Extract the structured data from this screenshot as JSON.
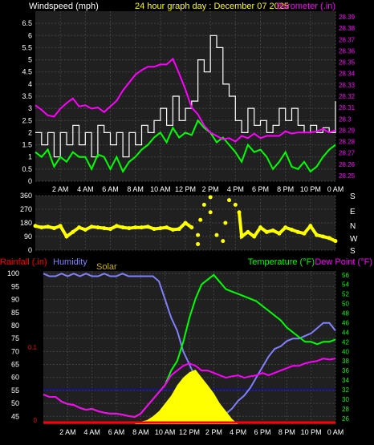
{
  "colors": {
    "background": "#000000",
    "plot_bg": "#202020",
    "grid": "#404040",
    "axis_text": "#ffffff",
    "wind": "#ffffff",
    "gust": "#00ff00",
    "barometer": "#ff00ff",
    "direction": "#ffff00",
    "rainfall": "#ff0000",
    "humidity": "#8080ff",
    "solar": "#ffff00",
    "temperature": "#00ff00",
    "dewpoint": "#ff00ff",
    "solar_label": "#c8b000"
  },
  "header": {
    "left_title": "Windspeed (mph)",
    "center_title": "24 hour graph day : December 07 2025",
    "right_title": "Barometer (.in)"
  },
  "bottom_header": {
    "rainfall": "Rainfall (.in)",
    "humidity": "Humidity",
    "solar": "Solar",
    "temperature": "Temperature (°F)",
    "dewpoint": "Dew Point (°F)"
  },
  "x_ticks": [
    "2 AM",
    "4 AM",
    "6 AM",
    "8 AM",
    "10 AM",
    "12 PM",
    "2 PM",
    "4 PM",
    "6 PM",
    "8 PM",
    "10 PM",
    "0 AM"
  ],
  "compass": [
    "S",
    "E",
    "N",
    "W",
    "S"
  ],
  "chart_data": [
    {
      "type": "line",
      "name": "wind",
      "x_range": [
        0,
        24
      ],
      "ylim": [
        0,
        7
      ],
      "yticks_left": [
        "0",
        "0.5",
        "1",
        "1.5",
        "2",
        "2.5",
        "3",
        "3.5",
        "4",
        "4.5",
        "5",
        "5.5",
        "6",
        "6.5"
      ],
      "ylim_right": [
        28.245,
        28.395
      ],
      "yticks_right": [
        "28.25",
        "28.26",
        "28.27",
        "28.28",
        "28.29",
        "28.3",
        "28.31",
        "28.32",
        "28.33",
        "28.34",
        "28.35",
        "28.36",
        "28.37",
        "28.38",
        "28.39"
      ],
      "series": [
        {
          "name": "wind",
          "axis": "left",
          "x": [
            0,
            0.5,
            1,
            1.5,
            2,
            2.5,
            3,
            3.5,
            4,
            4.5,
            5,
            5.5,
            6,
            6.5,
            7,
            7.5,
            8,
            8.5,
            9,
            9.5,
            10,
            10.5,
            11,
            11.5,
            12,
            12.5,
            13,
            13.5,
            14,
            14.5,
            15,
            15.5,
            16,
            16.5,
            17,
            17.5,
            18,
            18.5,
            19,
            19.5,
            20,
            20.5,
            21,
            21.5,
            22,
            22.5,
            23,
            23.5,
            24
          ],
          "values": [
            2,
            1.5,
            2,
            1,
            2,
            1.5,
            2.3,
            1.5,
            2,
            1,
            2.3,
            2,
            1.5,
            2,
            1,
            2,
            1.5,
            2.3,
            2,
            2.5,
            3,
            2.3,
            3.5,
            2.5,
            3,
            3.3,
            5,
            4.5,
            6,
            5.5,
            4,
            3.5,
            2.5,
            2,
            3,
            2.3,
            2.5,
            2,
            2.3,
            3,
            2.5,
            3,
            2.3,
            2,
            2.3,
            2,
            2.2,
            2,
            3.3
          ]
        },
        {
          "name": "gust",
          "axis": "left",
          "x": [
            0,
            0.5,
            1,
            1.5,
            2,
            2.5,
            3,
            3.5,
            4,
            4.5,
            5,
            5.5,
            6,
            6.5,
            7,
            7.5,
            8,
            8.5,
            9,
            9.5,
            10,
            10.5,
            11,
            11.5,
            12,
            12.5,
            13,
            13.5,
            14,
            14.5,
            15,
            15.5,
            16,
            16.5,
            17,
            17.5,
            18,
            18.5,
            19,
            19.5,
            20,
            20.5,
            21,
            21.5,
            22,
            22.5,
            23,
            23.5,
            24
          ],
          "values": [
            1.2,
            1,
            1.3,
            0.6,
            1,
            0.8,
            1.2,
            1,
            1,
            0.5,
            1.1,
            1,
            0.5,
            1,
            0.4,
            0.8,
            1,
            1.3,
            1.5,
            1.8,
            2,
            1.6,
            2.2,
            1.8,
            2,
            1.9,
            2.5,
            2.2,
            2,
            1.6,
            1.8,
            1.5,
            1.2,
            0.8,
            1.5,
            1.2,
            1.3,
            1,
            0.5,
            0.8,
            1.2,
            0.6,
            0.5,
            0.8,
            0.4,
            0.6,
            1,
            1.3,
            1.5
          ]
        },
        {
          "name": "barometer",
          "axis": "right",
          "x": [
            0,
            0.5,
            1,
            1.5,
            2,
            2.5,
            3,
            3.5,
            4,
            4.5,
            5,
            5.5,
            6,
            6.5,
            7,
            7.5,
            8,
            8.5,
            9,
            9.5,
            10,
            10.5,
            11,
            11.5,
            12,
            12.5,
            13,
            13.5,
            14,
            14.5,
            15,
            15.5,
            16,
            16.5,
            17,
            17.5,
            18,
            18.5,
            19,
            19.5,
            20,
            20.5,
            21,
            21.5,
            22,
            22.5,
            23,
            23.5,
            24
          ],
          "values": [
            28.312,
            28.308,
            28.303,
            28.302,
            28.309,
            28.314,
            28.318,
            28.311,
            28.312,
            28.309,
            28.31,
            28.306,
            28.311,
            28.316,
            28.325,
            28.332,
            28.339,
            28.343,
            28.346,
            28.346,
            28.348,
            28.348,
            28.353,
            28.34,
            28.326,
            28.31,
            28.304,
            28.294,
            28.288,
            28.285,
            28.282,
            28.283,
            28.28,
            28.285,
            28.283,
            28.287,
            28.283,
            28.285,
            28.285,
            28.285,
            28.289,
            28.287,
            28.288,
            28.288,
            28.288,
            28.289,
            28.291,
            28.288,
            28.29
          ]
        }
      ]
    },
    {
      "type": "scatter",
      "name": "wind direction",
      "x_range": [
        0,
        24
      ],
      "ylim": [
        0,
        360
      ],
      "yticks": [
        "0",
        "90",
        "180",
        "270",
        "360"
      ],
      "series": [
        {
          "name": "direction",
          "x": [
            0,
            0.5,
            1,
            1.5,
            2,
            2.5,
            3,
            3.5,
            4,
            4.5,
            5,
            5.5,
            6,
            6.5,
            7,
            7.5,
            8,
            8.5,
            9,
            9.5,
            10,
            10.5,
            11,
            11.5,
            12,
            12.5,
            13,
            13,
            13.2,
            13.5,
            14,
            14,
            14.5,
            15,
            15.2,
            15.5,
            16,
            16.3,
            16.5,
            17,
            17.5,
            18,
            18.5,
            19,
            19.5,
            20,
            20.5,
            21,
            21.5,
            22,
            22.5,
            23,
            23.5,
            24
          ],
          "values": [
            160,
            150,
            155,
            145,
            160,
            90,
            120,
            150,
            135,
            155,
            150,
            145,
            140,
            160,
            150,
            145,
            150,
            150,
            155,
            140,
            145,
            150,
            135,
            140,
            180,
            150,
            100,
            40,
            200,
            300,
            350,
            250,
            100,
            60,
            180,
            330,
            300,
            250,
            90,
            120,
            90,
            150,
            120,
            130,
            110,
            150,
            135,
            120,
            110,
            160,
            100,
            90,
            80,
            60
          ]
        }
      ]
    },
    {
      "type": "line",
      "name": "temperature humidity solar rainfall",
      "x_range": [
        0,
        24
      ],
      "ylim": [
        42,
        101
      ],
      "yticks_left": [
        "45",
        "50",
        "55",
        "60",
        "65",
        "70",
        "75",
        "80",
        "85",
        "90",
        "95",
        "100"
      ],
      "ylim_right": [
        24.8,
        56.8
      ],
      "yticks_right": [
        "26",
        "28",
        "30",
        "32",
        "34",
        "36",
        "38",
        "40",
        "42",
        "44",
        "46",
        "48",
        "50",
        "52",
        "54",
        "56"
      ],
      "rain_ticks": [
        "0",
        "0.1"
      ],
      "series": [
        {
          "name": "humidity",
          "axis": "left",
          "x": [
            0,
            0.5,
            1,
            1.5,
            2,
            2.5,
            3,
            3.5,
            4,
            4.5,
            5,
            5.5,
            6,
            6.5,
            7,
            7.5,
            8,
            8.5,
            9,
            9.5,
            10,
            10.5,
            11,
            11.5,
            12,
            12.5,
            13,
            13.5,
            14,
            14.5,
            15,
            15.5,
            16,
            16.5,
            17,
            17.5,
            18,
            18.5,
            19,
            19.5,
            20,
            20.5,
            21,
            21.5,
            22,
            22.5,
            23,
            23.5,
            24
          ],
          "values": [
            100,
            99,
            99,
            100,
            99,
            100,
            99,
            100,
            99,
            99,
            100,
            99,
            99,
            100,
            99,
            99,
            99,
            99,
            99,
            97,
            90,
            83,
            78,
            70,
            65,
            60,
            55,
            52,
            50,
            47,
            46,
            48,
            51,
            53,
            56,
            60,
            64,
            68,
            71,
            72,
            74,
            75,
            75,
            76,
            77,
            79,
            81,
            81,
            78
          ]
        },
        {
          "name": "temperature",
          "axis": "right",
          "x": [
            0,
            0.5,
            1,
            1.5,
            2,
            2.5,
            3,
            3.5,
            4,
            4.5,
            5,
            5.5,
            6,
            6.5,
            7,
            7.5,
            8,
            8.5,
            9,
            9.5,
            10,
            10.5,
            11,
            11.5,
            12,
            12.5,
            13,
            13.5,
            14,
            14.5,
            15,
            15.5,
            16,
            16.5,
            17,
            17.5,
            18,
            18.5,
            19,
            19.5,
            20,
            20.5,
            21,
            21.5,
            22,
            22.5,
            23,
            23.5,
            24
          ],
          "values": [
            31,
            30.5,
            30.5,
            29.5,
            29,
            28.8,
            28.2,
            27.8,
            28,
            27.5,
            27.2,
            27,
            27,
            26.8,
            26.5,
            26.3,
            27,
            28.5,
            30,
            31.5,
            33,
            36,
            38,
            42,
            47,
            51,
            54,
            55,
            56,
            54.5,
            53,
            52.5,
            52,
            51.5,
            51,
            50.5,
            49.5,
            48.5,
            47.5,
            46.5,
            45,
            44,
            43,
            42,
            42,
            41.5,
            42,
            42,
            42.5
          ]
        },
        {
          "name": "dewpoint",
          "axis": "right",
          "x": [
            0,
            0.5,
            1,
            1.5,
            2,
            2.5,
            3,
            3.5,
            4,
            4.5,
            5,
            5.5,
            6,
            6.5,
            7,
            7.5,
            8,
            8.5,
            9,
            9.5,
            10,
            10.5,
            11,
            11.5,
            12,
            12.5,
            13,
            13.5,
            14,
            14.5,
            15,
            15.5,
            16,
            16.5,
            17,
            17.5,
            18,
            18.5,
            19,
            19.5,
            20,
            20.5,
            21,
            21.5,
            22,
            22.5,
            23,
            23.5,
            24
          ],
          "values": [
            31,
            30.5,
            30.5,
            29.5,
            29,
            28.8,
            28.2,
            27.8,
            28,
            27.5,
            27.2,
            27,
            27,
            26.8,
            26.5,
            26.3,
            27,
            28.5,
            30,
            31.5,
            33,
            35,
            36,
            37,
            37.5,
            37,
            36,
            36,
            35.5,
            35,
            34.5,
            34.8,
            35,
            34.5,
            34.8,
            35,
            35.5,
            35,
            35.5,
            36,
            36.5,
            37,
            37,
            37.5,
            37.8,
            38,
            38.5,
            38.3,
            38.5
          ]
        },
        {
          "name": "solar",
          "axis": "left",
          "x": [
            7.5,
            8,
            8.5,
            9,
            9.5,
            10,
            10.5,
            11,
            11.5,
            12,
            12.5,
            13,
            13.5,
            14,
            14.5,
            15,
            15.5,
            16
          ],
          "values": [
            42,
            43,
            43.5,
            45,
            47,
            50,
            53,
            57,
            60,
            62,
            63,
            60,
            57,
            54,
            50,
            47,
            44,
            42
          ]
        },
        {
          "name": "rainfall",
          "axis": "rain",
          "x": [
            0,
            24
          ],
          "values": [
            0,
            0
          ]
        }
      ]
    }
  ]
}
